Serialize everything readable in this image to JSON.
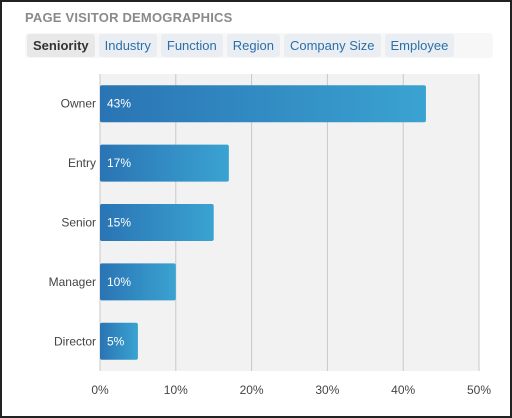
{
  "panel": {
    "title": "PAGE VISITOR DEMOGRAPHICS"
  },
  "tabs": [
    {
      "label": "Seniority",
      "active": true
    },
    {
      "label": "Industry",
      "active": false
    },
    {
      "label": "Function",
      "active": false
    },
    {
      "label": "Region",
      "active": false
    },
    {
      "label": "Company Size",
      "active": false
    },
    {
      "label": "Employee",
      "active": false
    }
  ],
  "colors": {
    "bar_start": "#2a74b4",
    "bar_end": "#3aa3d1",
    "plot_bg": "#f2f2f2",
    "grid": "#c8c8c8",
    "tab_link": "#2a6fa8"
  },
  "chart_data": {
    "type": "bar",
    "orientation": "horizontal",
    "categories": [
      "Owner",
      "Entry",
      "Senior",
      "Manager",
      "Director"
    ],
    "values": [
      43,
      17,
      15,
      10,
      5
    ],
    "value_labels": [
      "43%",
      "17%",
      "15%",
      "10%",
      "5%"
    ],
    "xlim": [
      0,
      50
    ],
    "xticks": [
      0,
      10,
      20,
      30,
      40,
      50
    ],
    "xtick_labels": [
      "0%",
      "10%",
      "20%",
      "30%",
      "40%",
      "50%"
    ],
    "grid": true,
    "legend": "none"
  }
}
